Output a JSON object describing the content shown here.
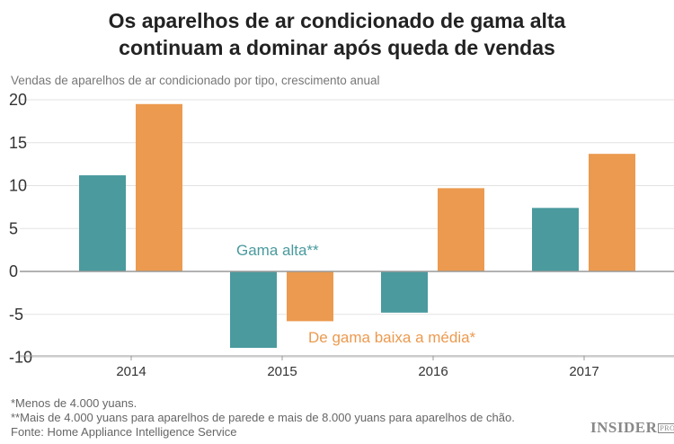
{
  "title_line1": "Os aparelhos de ar condicionado de gama alta",
  "title_line2": "continuam a dominar após queda de vendas",
  "subtitle": "Vendas de aparelhos de ar condicionado por tipo, crescimento anual",
  "notes": [
    "*Menos de 4.000 yuans.",
    "**Mais de 4.000 yuans para aparelhos de parede e mais de 8.000 yuans para aparelhos de chão.",
    "Fonte: Home Appliance Intelligence Service"
  ],
  "logo": {
    "main": "INSIDER",
    "badge": "PRO"
  },
  "chart_data": {
    "type": "bar",
    "categories": [
      "2014",
      "2015",
      "2016",
      "2017"
    ],
    "series": [
      {
        "name": "Gama alta**",
        "color": "#4a9a9e",
        "values": [
          11.2,
          -8.9,
          -4.8,
          7.4
        ]
      },
      {
        "name": "De gama baixa a média*",
        "color": "#eb9a4f",
        "values": [
          19.5,
          -5.8,
          9.7,
          13.7
        ]
      }
    ],
    "ylim": [
      -10,
      20
    ],
    "yticks": [
      "-10",
      "-5",
      "0",
      "5",
      "10",
      "15",
      "20"
    ],
    "grid": true,
    "legend": "inline labels"
  }
}
